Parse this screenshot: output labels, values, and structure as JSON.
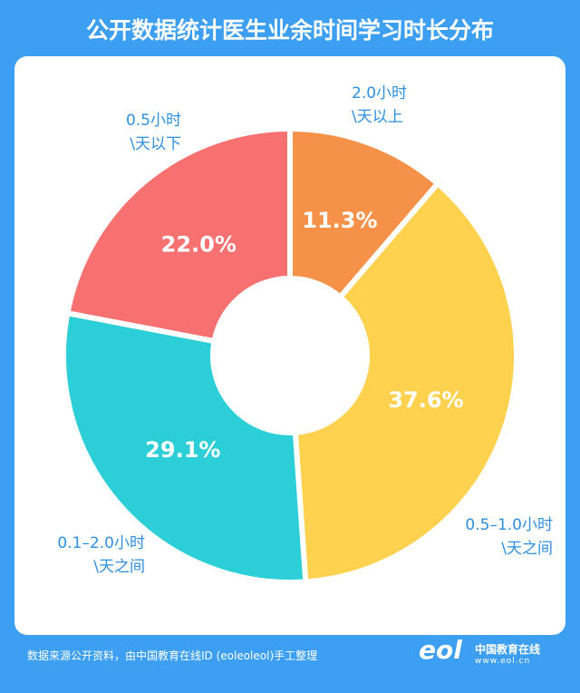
{
  "chart_data": {
    "type": "pie",
    "title": "公开数据统计医生业余时间学习时长分布",
    "categories": [
      "2.0小时\n\\天以上",
      "0.5–1.0小时\n\\天之间",
      "0.1–2.0小时\n\\天之间",
      "0.5小时\n\\天以下"
    ],
    "values": [
      11.3,
      37.6,
      29.1,
      22.0
    ],
    "value_labels": [
      "11.3%",
      "37.6%",
      "29.1%",
      "22.0%"
    ],
    "colors": [
      "#f6914a",
      "#fed24e",
      "#2ccfd8",
      "#f77171"
    ]
  },
  "footer": {
    "source": "数据来源公开资料，由中国教育在线ID (eoleoleol)手工整理",
    "logo_mark": "eol",
    "logo_name": "中国教育在线",
    "logo_url": "www.eol.cn"
  }
}
